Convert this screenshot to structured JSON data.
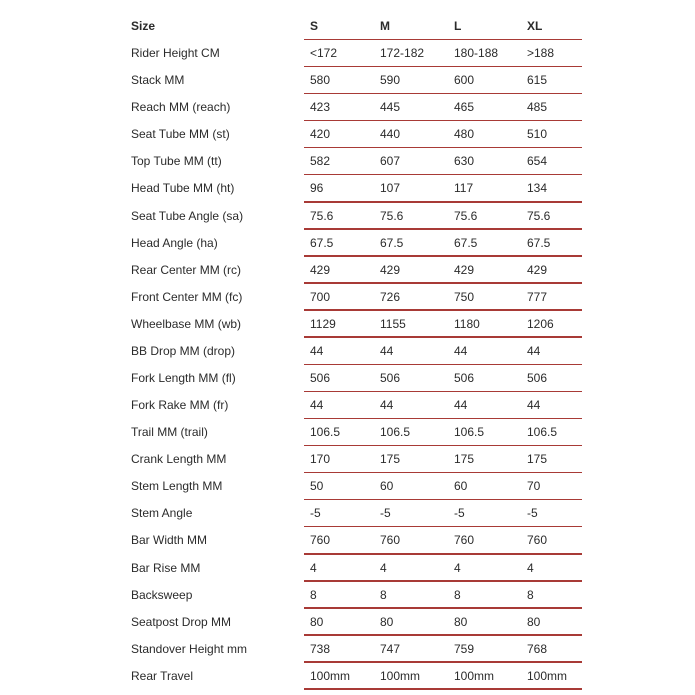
{
  "table": {
    "header": [
      "Size",
      "S",
      "M",
      "L",
      "XL"
    ],
    "line_color": "#a83a36",
    "rows": [
      [
        "Rider Height CM",
        "<172",
        "172-182",
        "180-188",
        ">188"
      ],
      [
        "Stack MM",
        "580",
        "590",
        "600",
        "615"
      ],
      [
        "Reach MM (reach)",
        "423",
        "445",
        "465",
        "485"
      ],
      [
        "Seat Tube MM (st)",
        "420",
        "440",
        "480",
        "510"
      ],
      [
        "Top Tube MM (tt)",
        "582",
        "607",
        "630",
        "654"
      ],
      [
        "Head Tube MM (ht)",
        "96",
        "107",
        "117",
        "134"
      ],
      [
        "Seat Tube Angle (sa)",
        "75.6",
        "75.6",
        "75.6",
        "75.6"
      ],
      [
        "Head Angle (ha)",
        "67.5",
        "67.5",
        "67.5",
        "67.5"
      ],
      [
        "Rear Center MM (rc)",
        "429",
        "429",
        "429",
        "429"
      ],
      [
        "Front Center MM (fc)",
        "700",
        "726",
        "750",
        "777"
      ],
      [
        "Wheelbase MM (wb)",
        "1129",
        "1155",
        "1180",
        "1206"
      ],
      [
        "BB Drop MM (drop)",
        "44",
        "44",
        "44",
        "44"
      ],
      [
        "Fork Length MM (fl)",
        "506",
        "506",
        "506",
        "506"
      ],
      [
        "Fork Rake MM (fr)",
        "44",
        "44",
        "44",
        "44"
      ],
      [
        "Trail MM (trail)",
        "106.5",
        "106.5",
        "106.5",
        "106.5"
      ],
      [
        "Crank Length MM",
        "170",
        "175",
        "175",
        "175"
      ],
      [
        "Stem Length MM",
        "50",
        "60",
        "60",
        "70"
      ],
      [
        "Stem Angle",
        "-5",
        "-5",
        "-5",
        "-5"
      ],
      [
        "Bar Width MM",
        "760",
        "760",
        "760",
        "760"
      ],
      [
        "Bar Rise MM",
        "4",
        "4",
        "4",
        "4"
      ],
      [
        "Backsweep",
        "8",
        "8",
        "8",
        "8"
      ],
      [
        "Seatpost Drop MM",
        "80",
        "80",
        "80",
        "80"
      ],
      [
        "Standover Height mm",
        "738",
        "747",
        "759",
        "768"
      ],
      [
        "Rear Travel",
        "100mm",
        "100mm",
        "100mm",
        "100mm"
      ]
    ]
  }
}
